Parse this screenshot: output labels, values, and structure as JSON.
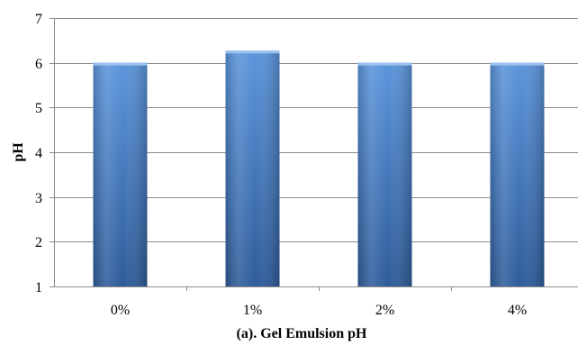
{
  "chart_data": {
    "type": "bar",
    "categories": [
      "0%",
      "1%",
      "2%",
      "4%"
    ],
    "values": [
      6.0,
      6.27,
      6.0,
      6.0
    ],
    "title": "",
    "xlabel": "(a). Gel Emulsion pH",
    "ylabel": "pH",
    "ylim": [
      1,
      7
    ],
    "yticks": [
      "1",
      "2",
      "3",
      "4",
      "5",
      "6",
      "7"
    ],
    "grid": true,
    "legend": "none",
    "colors": {
      "bar_light": "#6fa4e0",
      "bar_mid": "#4a84cf",
      "bar_dark": "#2f5f9e",
      "grid": "#8c8c8c"
    }
  }
}
